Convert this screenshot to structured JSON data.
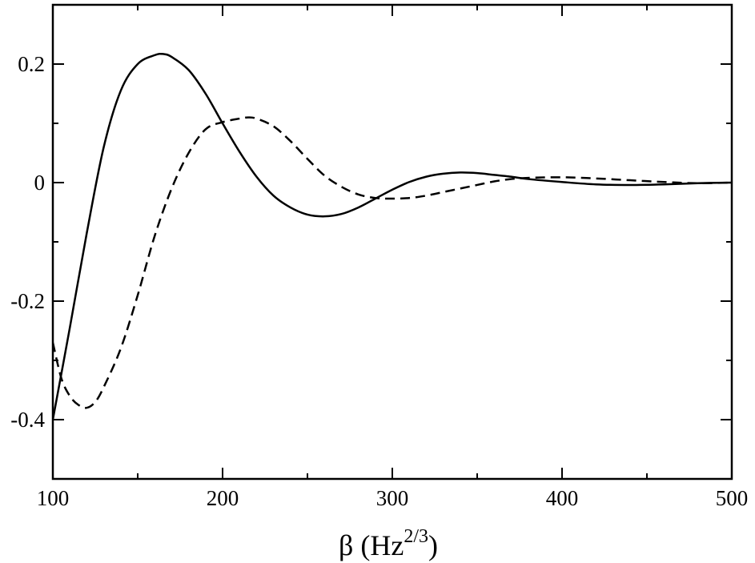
{
  "chart_data": {
    "type": "line",
    "title": "",
    "xlabel": {
      "symbol": "β",
      "unit_open": " (Hz",
      "unit_exponent": "2/3",
      "unit_close": ")"
    },
    "ylabel": "",
    "xlim": [
      100,
      500
    ],
    "ylim": [
      -0.5,
      0.3
    ],
    "xticks": [
      100,
      200,
      300,
      400,
      500
    ],
    "xtick_labels": [
      "100",
      "200",
      "300",
      "400",
      "500"
    ],
    "yticks": [
      -0.4,
      -0.2,
      0,
      0.2
    ],
    "ytick_labels": [
      "-0.4",
      "-0.2",
      "0",
      "0.2"
    ],
    "grid": false,
    "legend": false,
    "series": [
      {
        "style": "solid",
        "color": "#000000",
        "x": [
          100,
          110,
          120,
          130,
          140,
          150,
          160,
          165,
          170,
          180,
          190,
          200,
          210,
          220,
          230,
          240,
          250,
          260,
          270,
          280,
          290,
          300,
          310,
          320,
          330,
          340,
          350,
          360,
          370,
          380,
          400,
          420,
          440,
          460,
          480,
          500
        ],
        "y": [
          -0.4,
          -0.245,
          -0.085,
          0.06,
          0.155,
          0.2,
          0.215,
          0.217,
          0.212,
          0.19,
          0.15,
          0.1,
          0.052,
          0.01,
          -0.022,
          -0.042,
          -0.054,
          -0.057,
          -0.053,
          -0.042,
          -0.027,
          -0.012,
          0.001,
          0.01,
          0.015,
          0.017,
          0.016,
          0.013,
          0.01,
          0.006,
          0.001,
          -0.003,
          -0.004,
          -0.003,
          -0.001,
          0.0
        ]
      },
      {
        "style": "dashed",
        "color": "#000000",
        "x": [
          100,
          105,
          110,
          115,
          120,
          125,
          130,
          140,
          150,
          160,
          170,
          180,
          190,
          200,
          210,
          215,
          220,
          230,
          240,
          250,
          260,
          270,
          280,
          290,
          300,
          310,
          320,
          330,
          340,
          350,
          360,
          370,
          380,
          400,
          420,
          440,
          460,
          480,
          500
        ],
        "y": [
          -0.27,
          -0.33,
          -0.36,
          -0.375,
          -0.38,
          -0.37,
          -0.345,
          -0.28,
          -0.19,
          -0.09,
          -0.01,
          0.05,
          0.09,
          0.102,
          0.108,
          0.11,
          0.108,
          0.095,
          0.07,
          0.04,
          0.012,
          -0.007,
          -0.02,
          -0.026,
          -0.027,
          -0.026,
          -0.022,
          -0.016,
          -0.01,
          -0.004,
          0.002,
          0.006,
          0.008,
          0.009,
          0.007,
          0.004,
          0.001,
          -0.001,
          0.0
        ]
      }
    ]
  }
}
